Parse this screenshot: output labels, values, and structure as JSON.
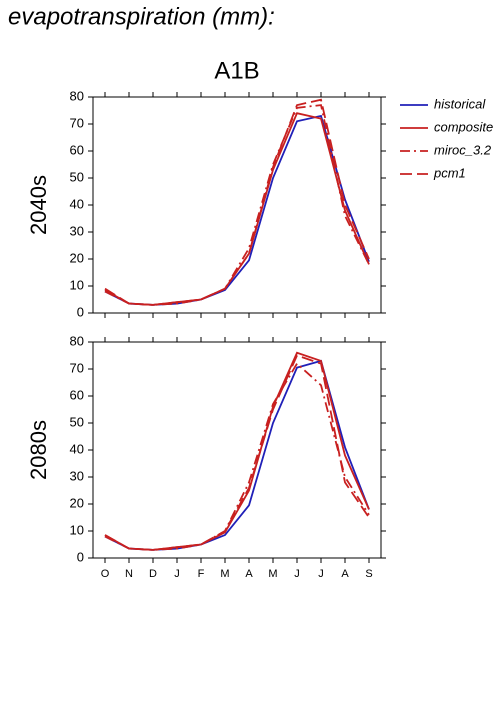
{
  "page": {
    "title": "evapotranspiration (mm):",
    "subtitle": "A1B"
  },
  "chart_data": [
    {
      "type": "line",
      "ylabel": "2040s",
      "ylim": [
        0,
        80
      ],
      "yticks": [
        0,
        10,
        20,
        30,
        40,
        50,
        60,
        70,
        80
      ],
      "series": [
        {
          "name": "historical",
          "color": "#2020b8",
          "style": "solid",
          "values": [
            8,
            3.5,
            3,
            3.5,
            5,
            8.5,
            19.5,
            50,
            71,
            73,
            42,
            19
          ]
        },
        {
          "name": "composite",
          "color": "#c82020",
          "style": "solid",
          "values": [
            8.5,
            3.5,
            3,
            4,
            5,
            9,
            22,
            53,
            74,
            72,
            38,
            18
          ]
        },
        {
          "name": "miroc_3.2",
          "color": "#c82020",
          "style": "dash-dot",
          "values": [
            8,
            3.5,
            3,
            3.5,
            5,
            9,
            24,
            55,
            76,
            77,
            36,
            18
          ]
        },
        {
          "name": "pcm1",
          "color": "#c82020",
          "style": "dash",
          "values": [
            9,
            3.5,
            3,
            4,
            5,
            9,
            22,
            54,
            77,
            79,
            40,
            20
          ]
        }
      ]
    },
    {
      "type": "line",
      "ylabel": "2080s",
      "ylim": [
        0,
        80
      ],
      "yticks": [
        0,
        10,
        20,
        30,
        40,
        50,
        60,
        70,
        80
      ],
      "categories": [
        "O",
        "N",
        "D",
        "J",
        "F",
        "M",
        "A",
        "M",
        "J",
        "J",
        "A",
        "S"
      ],
      "series": [
        {
          "color": "#2020b8",
          "style": "solid",
          "values": [
            8,
            3.5,
            3,
            3.5,
            5,
            8.5,
            19.5,
            50,
            70.5,
            73,
            41,
            18
          ]
        },
        {
          "color": "#c82020",
          "style": "solid",
          "values": [
            8.5,
            3.5,
            3,
            4,
            5,
            9.5,
            25,
            56,
            76,
            73,
            38,
            18
          ]
        },
        {
          "color": "#c82020",
          "style": "dash-dot",
          "values": [
            8,
            3.5,
            3,
            3.5,
            5,
            10,
            28,
            57,
            72,
            64,
            30,
            16
          ]
        },
        {
          "color": "#c82020",
          "style": "dash",
          "values": [
            8.5,
            3.5,
            3,
            4,
            5,
            10,
            26,
            55,
            75,
            72,
            28,
            15
          ]
        }
      ]
    }
  ]
}
